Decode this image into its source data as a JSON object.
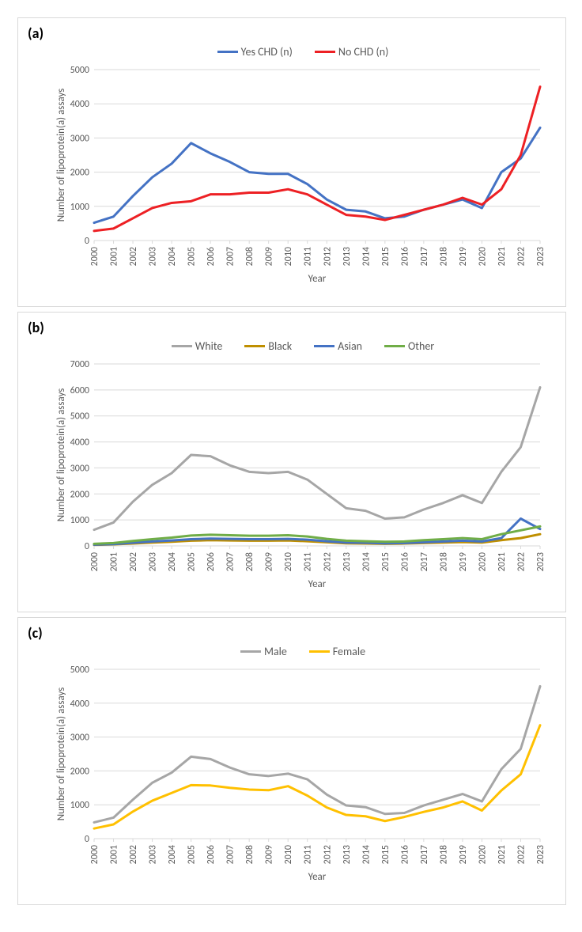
{
  "years": [
    2000,
    2001,
    2002,
    2003,
    2004,
    2005,
    2006,
    2007,
    2008,
    2009,
    2010,
    2011,
    2012,
    2013,
    2014,
    2015,
    2016,
    2017,
    2018,
    2019,
    2020,
    2021,
    2022,
    2023
  ],
  "fontsizes": {
    "panel_label": 18,
    "legend": 14,
    "tick": 12,
    "axis_title": 13
  },
  "colors": {
    "border": "#d9d9d9",
    "grid": "#d9d9d9",
    "text": "#595959",
    "background": "#ffffff"
  },
  "panel_a": {
    "label": "(a)",
    "type": "line",
    "x_title": "Year",
    "y_title": "Number of lipoprotein(a) assays",
    "ylim": [
      0,
      5000
    ],
    "ytick_step": 1000,
    "background_color": "#ffffff",
    "grid_color": "#d9d9d9",
    "line_width": 3,
    "series": [
      {
        "name": "Yes CHD (n)",
        "color": "#4472c4",
        "values": [
          520,
          700,
          1300,
          1850,
          2250,
          2850,
          2550,
          2300,
          2000,
          1950,
          1950,
          1650,
          1200,
          900,
          850,
          650,
          700,
          900,
          1050,
          1200,
          950,
          2000,
          2400,
          3300
        ]
      },
      {
        "name": "No CHD (n)",
        "color": "#ed2024",
        "values": [
          280,
          350,
          650,
          950,
          1100,
          1150,
          1350,
          1350,
          1400,
          1400,
          1500,
          1350,
          1050,
          750,
          700,
          600,
          750,
          900,
          1050,
          1250,
          1050,
          1500,
          2500,
          4500
        ]
      }
    ]
  },
  "panel_b": {
    "label": "(b)",
    "type": "line",
    "x_title": "Year",
    "y_title": "Number of lipoprotein(a) assays",
    "ylim": [
      0,
      7000
    ],
    "ytick_step": 1000,
    "background_color": "#ffffff",
    "grid_color": "#d9d9d9",
    "line_width": 3,
    "series": [
      {
        "name": "White",
        "color": "#a6a6a6",
        "values": [
          620,
          900,
          1700,
          2350,
          2800,
          3500,
          3450,
          3100,
          2850,
          2800,
          2850,
          2550,
          2000,
          1450,
          1350,
          1050,
          1100,
          1400,
          1650,
          1950,
          1650,
          2850,
          3800,
          6100
        ]
      },
      {
        "name": "Black",
        "color": "#bf8f00",
        "values": [
          40,
          60,
          90,
          130,
          160,
          200,
          220,
          210,
          200,
          200,
          210,
          180,
          140,
          100,
          90,
          80,
          90,
          110,
          130,
          150,
          130,
          220,
          300,
          450
        ]
      },
      {
        "name": "Asian",
        "color": "#4472c4",
        "values": [
          50,
          70,
          120,
          170,
          210,
          260,
          280,
          270,
          260,
          260,
          270,
          240,
          180,
          130,
          120,
          100,
          110,
          140,
          170,
          200,
          170,
          300,
          1050,
          650
        ]
      },
      {
        "name": "Other",
        "color": "#70ad47",
        "values": [
          80,
          110,
          190,
          260,
          320,
          400,
          430,
          410,
          390,
          390,
          410,
          360,
          270,
          200,
          180,
          160,
          170,
          220,
          260,
          300,
          260,
          450,
          600,
          750
        ]
      }
    ]
  },
  "panel_c": {
    "label": "(c)",
    "type": "line",
    "x_title": "Year",
    "y_title": "Number of lipoprotein(a) assays",
    "ylim": [
      0,
      5000
    ],
    "ytick_step": 1000,
    "background_color": "#ffffff",
    "grid_color": "#d9d9d9",
    "line_width": 3,
    "series": [
      {
        "name": "Male",
        "color": "#a6a6a6",
        "values": [
          480,
          620,
          1150,
          1650,
          1950,
          2420,
          2350,
          2100,
          1900,
          1850,
          1920,
          1750,
          1300,
          980,
          930,
          730,
          760,
          980,
          1150,
          1320,
          1100,
          2050,
          2650,
          4500
        ]
      },
      {
        "name": "Female",
        "color": "#ffc000",
        "values": [
          300,
          420,
          800,
          1120,
          1350,
          1580,
          1570,
          1500,
          1450,
          1430,
          1550,
          1270,
          920,
          700,
          660,
          520,
          640,
          790,
          920,
          1100,
          830,
          1420,
          1900,
          3350
        ]
      }
    ]
  }
}
